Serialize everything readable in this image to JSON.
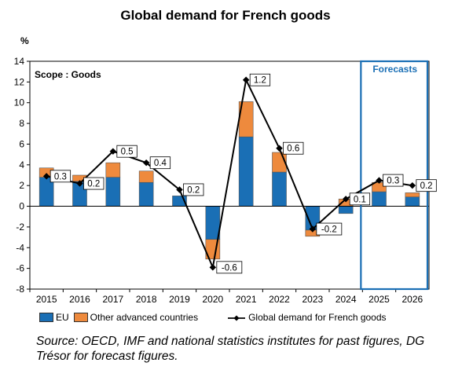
{
  "chart_data": {
    "type": "bar+line",
    "title": "Global demand for French goods",
    "ylabel": "%",
    "annotation_scope": "Scope : Goods",
    "forecast_label": "Forecasts",
    "categories": [
      "2015",
      "2016",
      "2017",
      "2018",
      "2019",
      "2020",
      "2021",
      "2022",
      "2023",
      "2024",
      "2025",
      "2026"
    ],
    "forecast_categories": [
      "2025",
      "2026"
    ],
    "ylim": [
      -8,
      14
    ],
    "yticks": [
      -8,
      -6,
      -4,
      -2,
      0,
      2,
      4,
      6,
      8,
      10,
      12,
      14
    ],
    "series": [
      {
        "name": "EU",
        "type": "bar",
        "color": "#1a6fb5",
        "values": [
          2.8,
          2.4,
          2.8,
          2.3,
          1.0,
          -3.2,
          6.7,
          3.3,
          -2.3,
          -0.7,
          1.4,
          0.9
        ]
      },
      {
        "name": "Other advanced countries",
        "type": "bar",
        "color": "#ee8a3d",
        "values": [
          0.9,
          0.6,
          1.4,
          1.1,
          0.0,
          -1.9,
          3.4,
          1.9,
          -0.6,
          0.7,
          0.9,
          0.4
        ]
      },
      {
        "name": "Global demand for French goods",
        "type": "line",
        "color": "#000000",
        "values": [
          2.9,
          2.2,
          5.3,
          4.2,
          1.6,
          -5.9,
          12.2,
          5.6,
          -2.2,
          0.7,
          2.5,
          2.0
        ]
      }
    ],
    "data_labels": [
      "0.3",
      "0.2",
      "0.5",
      "0.4",
      "0.2",
      "-0.6",
      "1.2",
      "0.6",
      "-0.2",
      "0.1",
      "0.3",
      "0.2"
    ],
    "legend_position": "bottom"
  },
  "source_text": "Source: OECD, IMF and national statistics institutes for past figures, DG Trésor for forecast figures."
}
